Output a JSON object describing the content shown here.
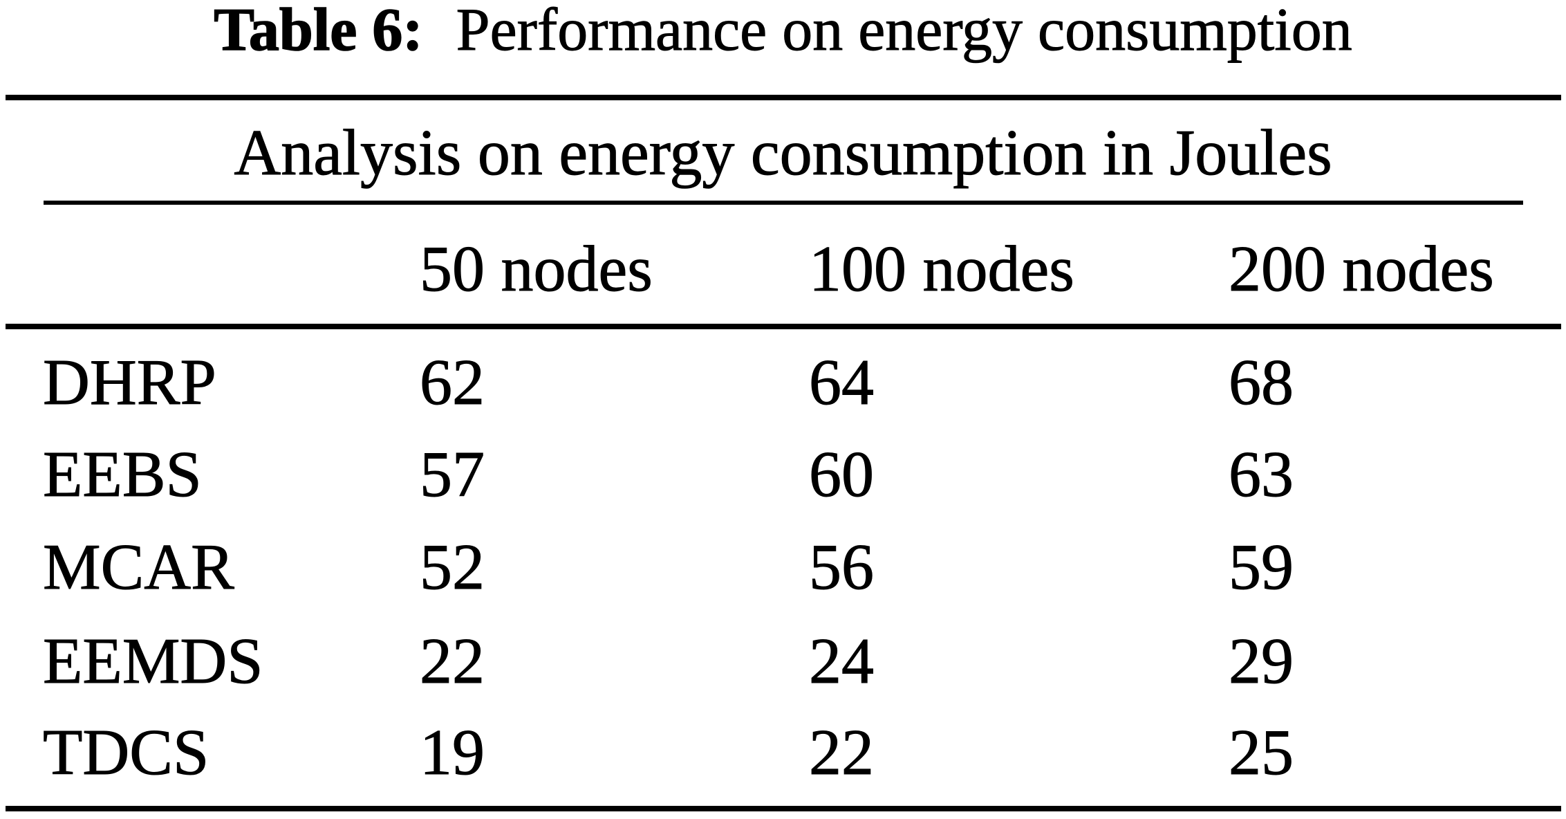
{
  "title": {
    "label": "Table 6:",
    "text": "Performance on energy consumption"
  },
  "table": {
    "caption": "Analysis on energy consumption in Joules",
    "columns": [
      "50 nodes",
      "100 nodes",
      "200 nodes"
    ],
    "rows": [
      {
        "label": "DHRP",
        "values": [
          "62",
          "64",
          "68"
        ]
      },
      {
        "label": "EEBS",
        "values": [
          "57",
          "60",
          "63"
        ]
      },
      {
        "label": "MCAR",
        "values": [
          "52",
          "56",
          "59"
        ]
      },
      {
        "label": "EEMDS",
        "values": [
          "22",
          "24",
          "29"
        ]
      },
      {
        "label": "TDCS",
        "values": [
          "19",
          "22",
          "25"
        ]
      }
    ]
  },
  "colors": {
    "text": "#000000",
    "background": "#ffffff",
    "rule": "#000000"
  },
  "chart_data": {
    "type": "table",
    "title": "Table 6: Performance on energy consumption",
    "subtitle": "Analysis on energy consumption in Joules",
    "unit": "Joules",
    "categories": [
      "50 nodes",
      "100 nodes",
      "200 nodes"
    ],
    "series": [
      {
        "name": "DHRP",
        "values": [
          62,
          64,
          68
        ]
      },
      {
        "name": "EEBS",
        "values": [
          57,
          60,
          63
        ]
      },
      {
        "name": "MCAR",
        "values": [
          52,
          56,
          59
        ]
      },
      {
        "name": "EEMDS",
        "values": [
          22,
          24,
          29
        ]
      },
      {
        "name": "TDCS",
        "values": [
          19,
          22,
          25
        ]
      }
    ]
  }
}
